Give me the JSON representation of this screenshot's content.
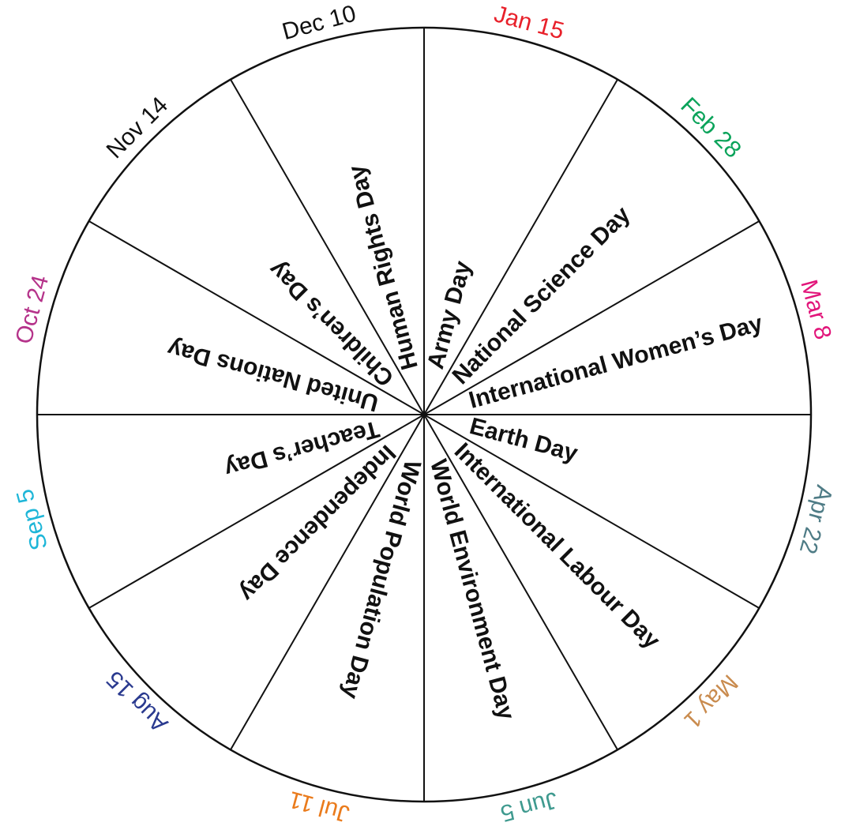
{
  "wheel": {
    "sectors": [
      {
        "date": "Jan 15",
        "event": "Army Day",
        "color": "#e8202a"
      },
      {
        "date": "Feb 28",
        "event": "National Science Day",
        "color": "#0aa35a"
      },
      {
        "date": "Mar 8",
        "event": "International Women’s Day",
        "color": "#e2157a"
      },
      {
        "date": "Apr 22",
        "event": "Earth Day",
        "color": "#4f7c86"
      },
      {
        "date": "May 1",
        "event": "International Labour Day",
        "color": "#c98b4e"
      },
      {
        "date": "Jun 5",
        "event": "World Environment Day",
        "color": "#3f9a8f"
      },
      {
        "date": "Jul 11",
        "event": "World Population Day",
        "color": "#ea7b1c"
      },
      {
        "date": "Aug 15",
        "event": "Independence Day",
        "color": "#2a3a8f"
      },
      {
        "date": "Sep 5",
        "event": "Teacher’s Day",
        "color": "#1eb6d8"
      },
      {
        "date": "Oct 24",
        "event": "United Nations Day",
        "color": "#b5338a"
      },
      {
        "date": "Nov 14",
        "event": "Children’s Day",
        "color": "#111111"
      },
      {
        "date": "Dec 10",
        "event": "Human Rights Day",
        "color": "#111111"
      }
    ]
  }
}
